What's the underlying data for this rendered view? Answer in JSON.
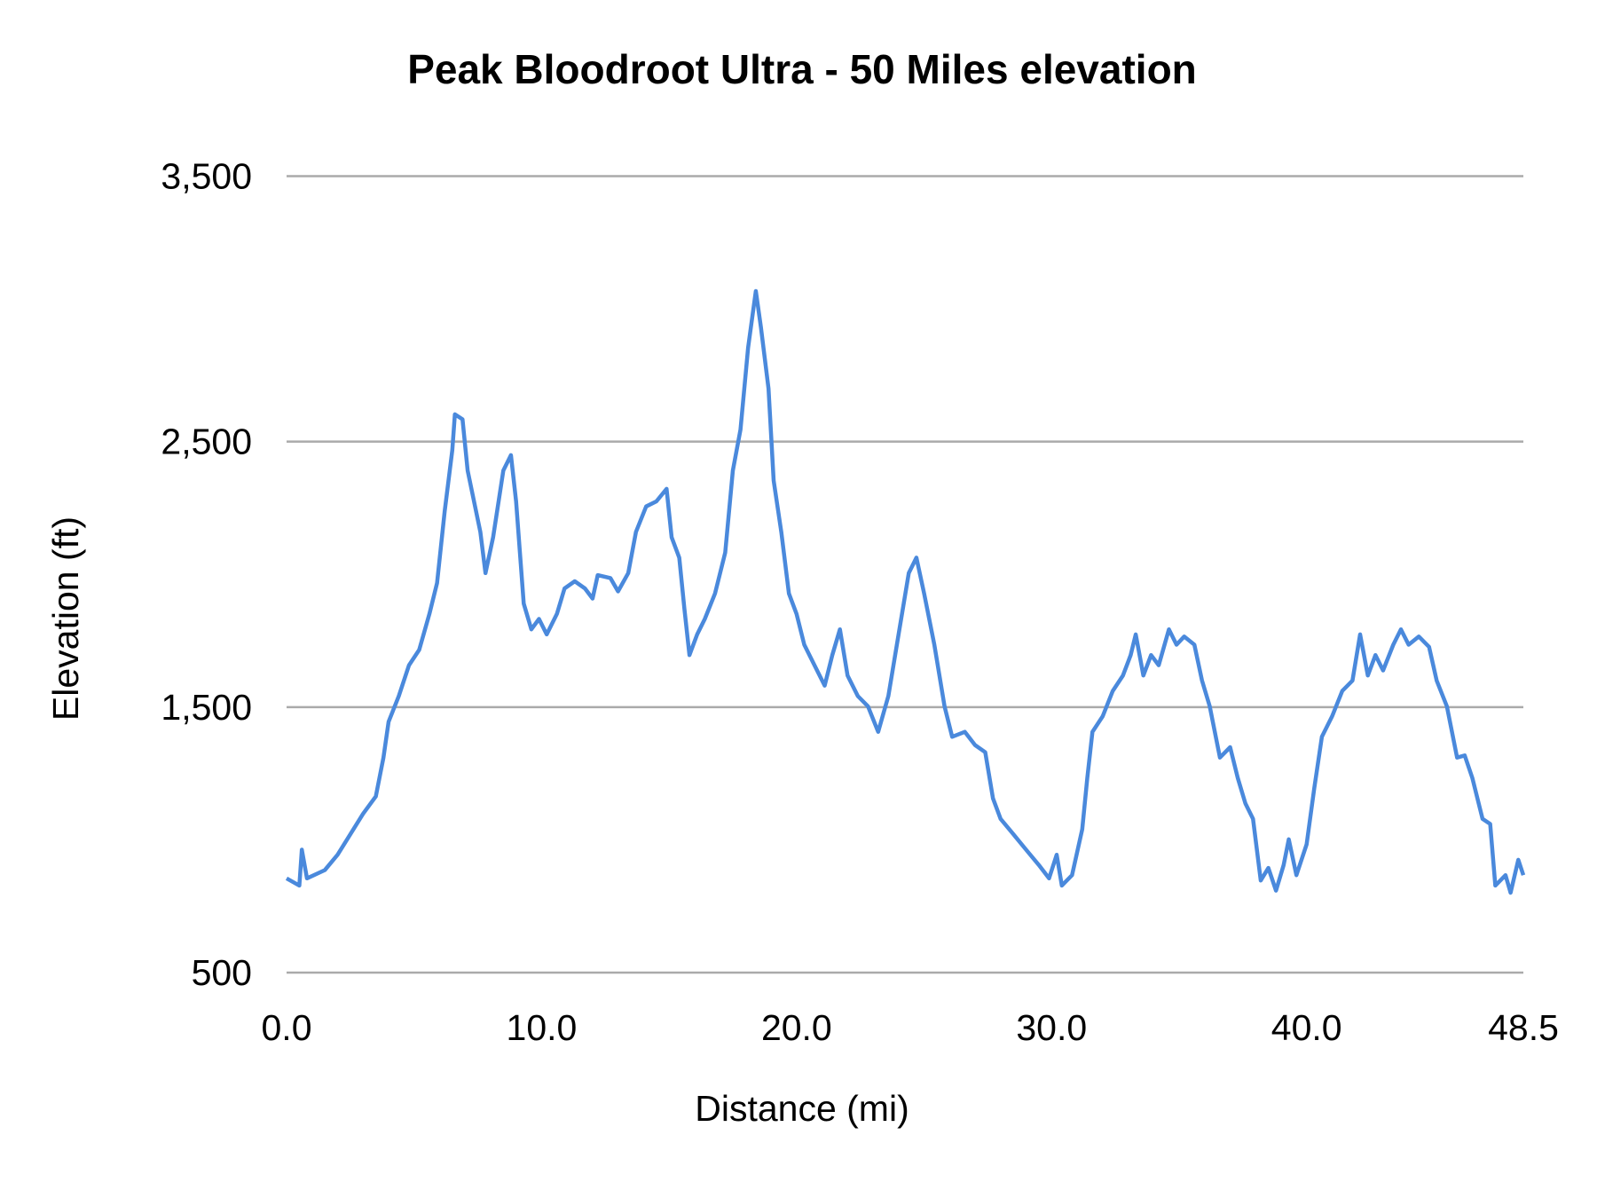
{
  "chart_data": {
    "type": "line",
    "title": "Peak Bloodroot Ultra - 50 Miles elevation",
    "xlabel": "Distance (mi)",
    "ylabel": "Elevation (ft)",
    "xlim": [
      0,
      48.5
    ],
    "ylim": [
      500,
      3500
    ],
    "xticks": [
      "0.0",
      "10.0",
      "20.0",
      "30.0",
      "40.0",
      "48.5"
    ],
    "xtick_values": [
      0,
      10,
      20,
      30,
      40,
      48.5
    ],
    "yticks": [
      "500",
      "1,500",
      "2,500",
      "3,500"
    ],
    "ytick_values": [
      500,
      1500,
      2500,
      3500
    ],
    "grid": "horizontal",
    "line_color": "#4a89dc",
    "grid_color": "#aaaaaa",
    "x": [
      0,
      0.5,
      0.6,
      0.8,
      1.5,
      2,
      2.5,
      3,
      3.5,
      3.8,
      4.0,
      4.4,
      4.8,
      5.2,
      5.6,
      5.9,
      6.2,
      6.5,
      6.6,
      6.9,
      7.1,
      7.6,
      7.8,
      8.1,
      8.5,
      8.8,
      9.0,
      9.3,
      9.6,
      9.9,
      10.2,
      10.6,
      10.9,
      11.3,
      11.7,
      12.0,
      12.2,
      12.7,
      13.0,
      13.4,
      13.7,
      14.1,
      14.5,
      14.9,
      15.1,
      15.4,
      15.6,
      15.8,
      16.1,
      16.4,
      16.8,
      17.2,
      17.5,
      17.8,
      18.1,
      18.4,
      18.6,
      18.9,
      19.1,
      19.4,
      19.7,
      20.0,
      20.3,
      20.7,
      21.1,
      21.4,
      21.7,
      22.0,
      22.4,
      22.8,
      23.2,
      23.6,
      24.0,
      24.4,
      24.7,
      25.0,
      25.4,
      25.8,
      26.1,
      26.6,
      27.0,
      27.4,
      27.7,
      28.0,
      28.5,
      29.0,
      29.5,
      29.9,
      30.2,
      30.4,
      30.8,
      31.2,
      31.4,
      31.6,
      32.0,
      32.4,
      32.8,
      33.1,
      33.3,
      33.6,
      33.9,
      34.2,
      34.6,
      34.9,
      35.2,
      35.6,
      35.9,
      36.2,
      36.6,
      37.0,
      37.3,
      37.6,
      37.9,
      38.2,
      38.5,
      38.8,
      39.1,
      39.3,
      39.6,
      40.0,
      40.3,
      40.6,
      41.0,
      41.4,
      41.8,
      42.1,
      42.4,
      42.7,
      43.0,
      43.4,
      43.7,
      44.0,
      44.4,
      44.8,
      45.1,
      45.5,
      45.9,
      46.2,
      46.5,
      46.9,
      47.2,
      47.4,
      47.8,
      48.0,
      48.3,
      48.5
    ],
    "y": [
      855,
      828,
      963,
      855,
      886,
      944,
      1021,
      1098,
      1164,
      1310,
      1445,
      1542,
      1658,
      1716,
      1851,
      1967,
      2237,
      2468,
      2603,
      2584,
      2391,
      2160,
      2005,
      2140,
      2391,
      2449,
      2275,
      1890,
      1793,
      1832,
      1774,
      1851,
      1947,
      1974,
      1947,
      1909,
      1997,
      1986,
      1936,
      2005,
      2160,
      2256,
      2275,
      2322,
      2140,
      2063,
      1870,
      1696,
      1774,
      1832,
      1928,
      2082,
      2391,
      2545,
      2854,
      3067,
      2932,
      2700,
      2353,
      2160,
      1928,
      1851,
      1735,
      1658,
      1581,
      1696,
      1793,
      1619,
      1542,
      1503,
      1407,
      1542,
      1774,
      2005,
      2063,
      1928,
      1735,
      1503,
      1388,
      1407,
      1357,
      1330,
      1156,
      1079,
      1021,
      963,
      905,
      855,
      944,
      828,
      867,
      1040,
      1233,
      1407,
      1465,
      1561,
      1619,
      1696,
      1774,
      1619,
      1696,
      1658,
      1793,
      1735,
      1766,
      1735,
      1600,
      1503,
      1310,
      1349,
      1233,
      1137,
      1079,
      847,
      894,
      809,
      905,
      1002,
      867,
      983,
      1194,
      1388,
      1465,
      1561,
      1600,
      1774,
      1619,
      1696,
      1638,
      1735,
      1793,
      1735,
      1766,
      1727,
      1600,
      1503,
      1310,
      1318,
      1233,
      1079,
      1060,
      828,
      867,
      801,
      925,
      867
    ]
  }
}
